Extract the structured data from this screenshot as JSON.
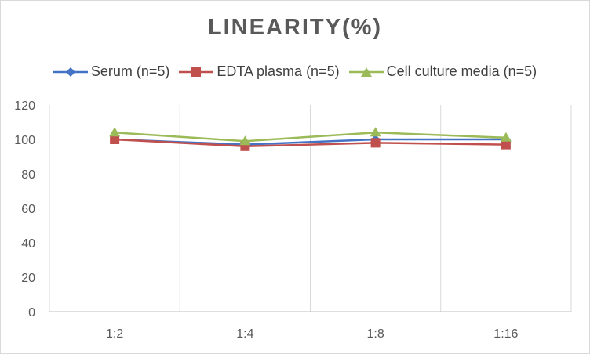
{
  "chart_data": {
    "type": "line",
    "title": "LINEARITY(%)",
    "xlabel": "",
    "ylabel": "",
    "categories": [
      "1:2",
      "1:4",
      "1:8",
      "1:16"
    ],
    "ylim": [
      0,
      120
    ],
    "yticks": [
      0,
      20,
      40,
      60,
      80,
      100,
      120
    ],
    "grid": "vertical",
    "legend_position": "top",
    "series": [
      {
        "name": "Serum (n=5)",
        "color": "#4472c4",
        "marker": "diamond",
        "values": [
          100,
          97,
          100,
          100
        ]
      },
      {
        "name": "EDTA plasma (n=5)",
        "color": "#c0504d",
        "marker": "square",
        "values": [
          100,
          96,
          98,
          97
        ]
      },
      {
        "name": "Cell culture media (n=5)",
        "color": "#9bbb59",
        "marker": "triangle",
        "values": [
          104,
          99,
          104,
          101
        ]
      }
    ]
  }
}
